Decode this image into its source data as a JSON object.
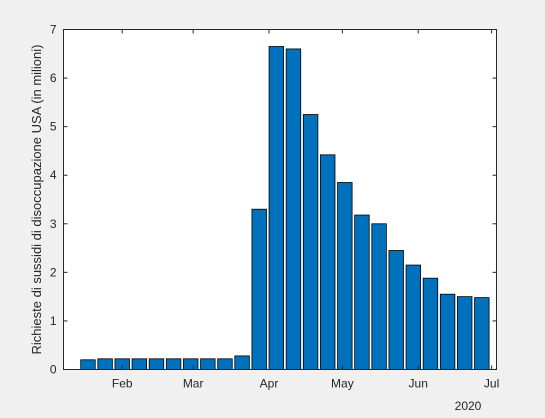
{
  "chart_data": {
    "type": "bar",
    "title": "",
    "xlabel": "",
    "ylabel": "Richieste di sussidi di disoccupazione USA (in milioni)",
    "year_label": "2020",
    "bar_color": "#0072BD",
    "axes_background": "#ffffff",
    "figure_background": "#f0f0f0",
    "ylim": [
      0,
      7
    ],
    "y_ticks": [
      0,
      1,
      2,
      3,
      4,
      5,
      6,
      7
    ],
    "x_ticks": [
      "Feb",
      "Mar",
      "Apr",
      "May",
      "Jun",
      "Jul"
    ],
    "x_tick_dates": [
      "2020-02-01",
      "2020-03-01",
      "2020-04-01",
      "2020-05-01",
      "2020-06-01",
      "2020-07-01"
    ],
    "xlim": [
      "2020-01-08",
      "2020-07-03"
    ],
    "grid": false,
    "legend": false,
    "x": [
      "2020-01-18",
      "2020-01-25",
      "2020-02-01",
      "2020-02-08",
      "2020-02-15",
      "2020-02-22",
      "2020-02-29",
      "2020-03-07",
      "2020-03-14",
      "2020-03-21",
      "2020-03-28",
      "2020-04-04",
      "2020-04-11",
      "2020-04-18",
      "2020-04-25",
      "2020-05-02",
      "2020-05-09",
      "2020-05-16",
      "2020-05-23",
      "2020-05-30",
      "2020-06-06",
      "2020-06-13",
      "2020-06-20",
      "2020-06-27"
    ],
    "values": [
      0.2,
      0.22,
      0.22,
      0.22,
      0.22,
      0.22,
      0.22,
      0.22,
      0.22,
      0.28,
      3.3,
      6.65,
      6.6,
      5.25,
      4.42,
      3.85,
      3.18,
      3.0,
      2.45,
      2.15,
      1.88,
      1.55,
      1.5,
      1.48
    ]
  }
}
